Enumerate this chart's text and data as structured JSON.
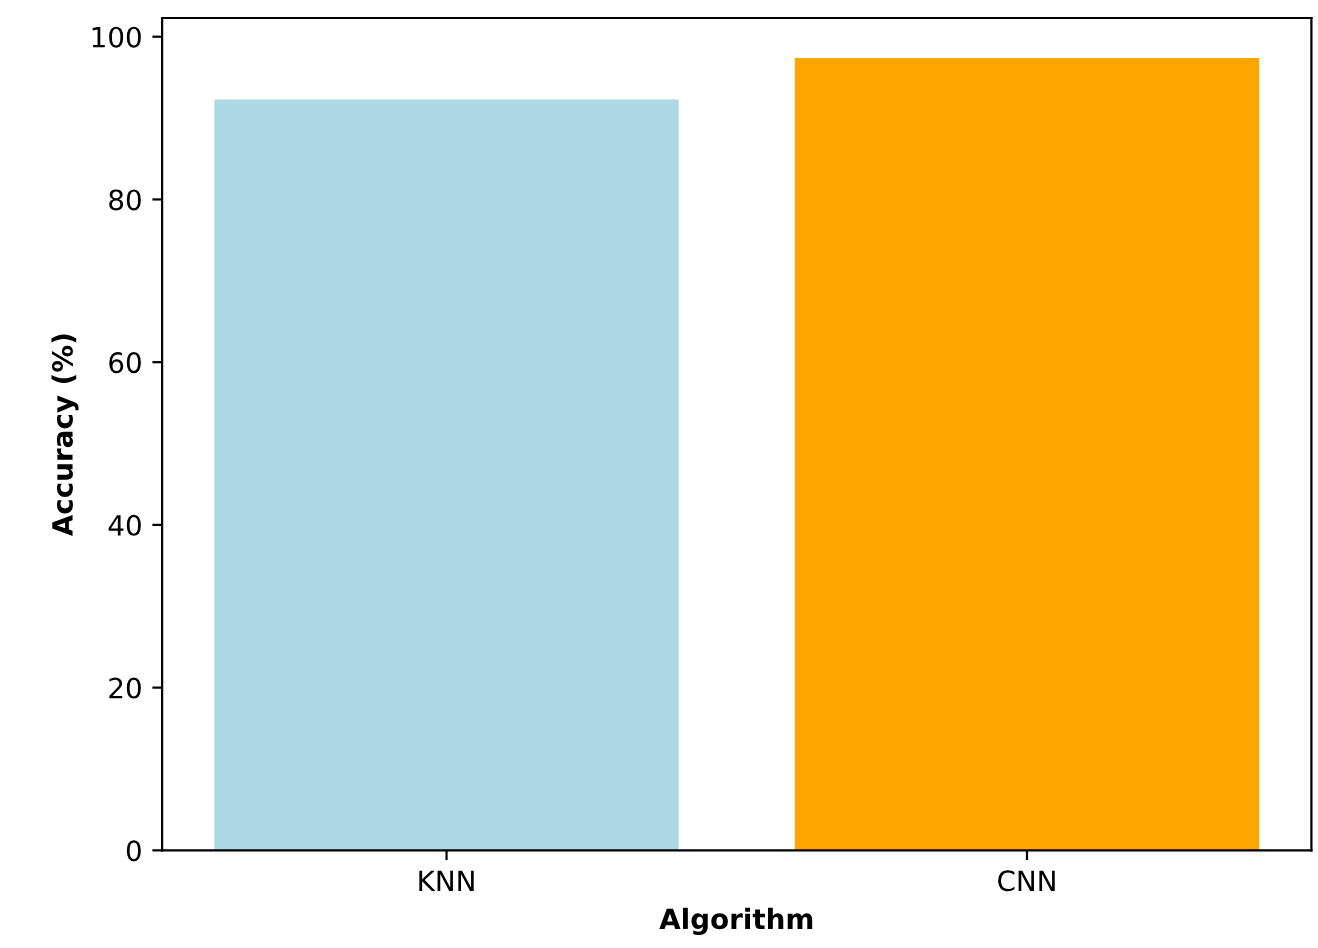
{
  "chart_data": {
    "type": "bar",
    "xlabel": "Algorithm",
    "ylabel": "Accuracy (%)",
    "categories": [
      "KNN",
      "CNN"
    ],
    "values": [
      92.3,
      97.4
    ],
    "colors": [
      "#add8e6",
      "#ffa500"
    ],
    "ylim": [
      0,
      102.3
    ],
    "yticks": [
      0,
      20,
      40,
      60,
      80,
      100
    ],
    "grid": false
  }
}
